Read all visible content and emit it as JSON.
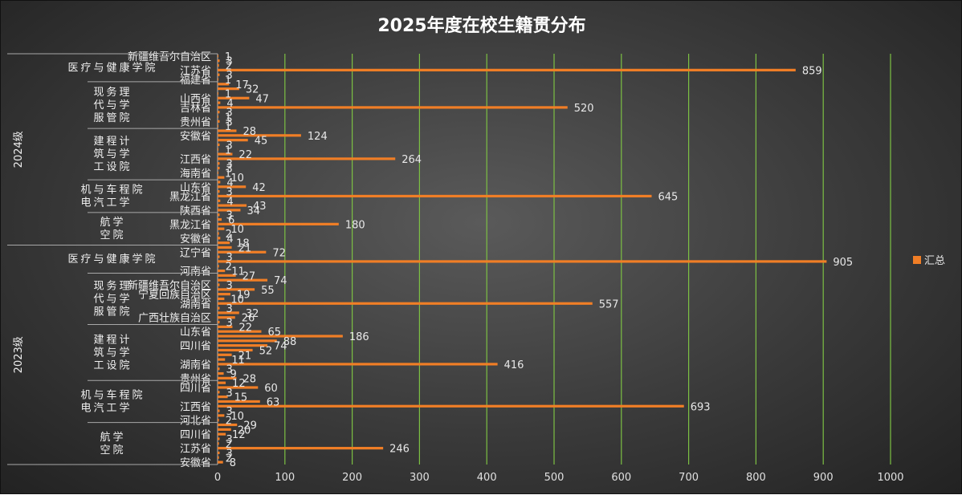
{
  "chart_data": {
    "type": "bar",
    "orientation": "horizontal",
    "title": "2025年度在校生籍贯分布",
    "xlabel": "",
    "ylabel": "",
    "xlim": [
      0,
      1000
    ],
    "x_ticks": [
      0,
      100,
      200,
      300,
      400,
      500,
      600,
      700,
      800,
      900,
      1000
    ],
    "grid": true,
    "legend": {
      "position": "right",
      "entries": [
        "汇总"
      ]
    },
    "series_color": "#f07e26",
    "grid_color": "#7cc043",
    "groups": [
      {
        "label": "2024级",
        "departments": [
          {
            "label": "医疗与健康学院",
            "bars": [
              {
                "label": "新疆维吾尔自治区",
                "value": 1
              },
              {
                "label": "",
                "value": 3
              },
              {
                "label": "",
                "value": 2
              },
              {
                "label": "江苏省",
                "value": 859
              },
              {
                "label": "",
                "value": 3
              },
              {
                "label": "福建省",
                "value": 1
              }
            ]
          },
          {
            "label": "现代服务与管理学院",
            "bars": [
              {
                "label": "",
                "value": 17
              },
              {
                "label": "",
                "value": 32
              },
              {
                "label": "",
                "value": 1
              },
              {
                "label": "山西省",
                "value": 47
              },
              {
                "label": "",
                "value": 4
              },
              {
                "label": "吉林省",
                "value": 520
              },
              {
                "label": "",
                "value": 3
              },
              {
                "label": "",
                "value": 1
              },
              {
                "label": "贵州省",
                "value": 3
              },
              {
                "label": "",
                "value": 1
              }
            ]
          },
          {
            "label": "建筑工程与设计学院",
            "bars": [
              {
                "label": "",
                "value": 28
              },
              {
                "label": "安徽省",
                "value": 124
              },
              {
                "label": "",
                "value": 45
              },
              {
                "label": "",
                "value": 3
              },
              {
                "label": "",
                "value": 1
              },
              {
                "label": "",
                "value": 22
              },
              {
                "label": "江西省",
                "value": 264
              },
              {
                "label": "",
                "value": 3
              },
              {
                "label": "",
                "value": 3
              },
              {
                "label": "海南省",
                "value": 1
              },
              {
                "label": "",
                "value": 10
              }
            ]
          },
          {
            "label": "机电与汽车工程学院",
            "bars": [
              {
                "label": "",
                "value": 4
              },
              {
                "label": "山东省",
                "value": 42
              },
              {
                "label": "",
                "value": 3
              },
              {
                "label": "黑龙江省",
                "value": 645
              },
              {
                "label": "",
                "value": 4
              },
              {
                "label": "",
                "value": 43
              },
              {
                "label": "陕西省",
                "value": 34
              }
            ]
          },
          {
            "label": "航空学院",
            "bars": [
              {
                "label": "",
                "value": 3
              },
              {
                "label": "",
                "value": 6
              },
              {
                "label": "黑龙江省",
                "value": 180
              },
              {
                "label": "",
                "value": 10
              },
              {
                "label": "",
                "value": 2
              },
              {
                "label": "安徽省",
                "value": 4
              },
              {
                "label": "",
                "value": 18
              }
            ]
          }
        ]
      },
      {
        "label": "2023级",
        "departments": [
          {
            "label": "医疗与健康学院",
            "bars": [
              {
                "label": "",
                "value": 21
              },
              {
                "label": "辽宁省",
                "value": 72
              },
              {
                "label": "",
                "value": 3
              },
              {
                "label": "",
                "value": 905
              },
              {
                "label": "",
                "value": 2
              },
              {
                "label": "河南省",
                "value": 11
              }
            ]
          },
          {
            "label": "现代服务与管理学院",
            "bars": [
              {
                "label": "",
                "value": 27
              },
              {
                "label": "",
                "value": 74
              },
              {
                "label": "新疆维吾尔自治区",
                "value": 3
              },
              {
                "label": "",
                "value": 55
              },
              {
                "label": "宁夏回族自治区",
                "value": 19
              },
              {
                "label": "",
                "value": 10
              },
              {
                "label": "湖南省",
                "value": 557
              },
              {
                "label": "",
                "value": 3
              },
              {
                "label": "",
                "value": 32
              },
              {
                "label": "广西壮族自治区",
                "value": 26
              },
              {
                "label": "",
                "value": 3
              }
            ]
          },
          {
            "label": "建筑工程与设计学院",
            "bars": [
              {
                "label": "",
                "value": 22
              },
              {
                "label": "山东省",
                "value": 65
              },
              {
                "label": "",
                "value": 186
              },
              {
                "label": "",
                "value": 88
              },
              {
                "label": "四川省",
                "value": 74
              },
              {
                "label": "",
                "value": 52
              },
              {
                "label": "",
                "value": 21
              },
              {
                "label": "",
                "value": 11
              },
              {
                "label": "湖南省",
                "value": 416
              },
              {
                "label": "",
                "value": 3
              },
              {
                "label": "",
                "value": 9
              },
              {
                "label": "贵州省",
                "value": 28
              }
            ]
          },
          {
            "label": "机电与汽车工程学院",
            "bars": [
              {
                "label": "",
                "value": 12
              },
              {
                "label": "四川省",
                "value": 60
              },
              {
                "label": "",
                "value": 3
              },
              {
                "label": "",
                "value": 15
              },
              {
                "label": "",
                "value": 63
              },
              {
                "label": "江西省",
                "value": 693
              },
              {
                "label": "",
                "value": 3
              },
              {
                "label": "",
                "value": 10
              },
              {
                "label": "河北省",
                "value": 2
              }
            ]
          },
          {
            "label": "航空学院",
            "bars": [
              {
                "label": "",
                "value": 29
              },
              {
                "label": "",
                "value": 20
              },
              {
                "label": "四川省",
                "value": 12
              },
              {
                "label": "",
                "value": 3
              },
              {
                "label": "",
                "value": 2
              },
              {
                "label": "江苏省",
                "value": 246
              },
              {
                "label": "",
                "value": 3
              },
              {
                "label": "",
                "value": 2
              },
              {
                "label": "安徽省",
                "value": 8
              }
            ]
          }
        ]
      }
    ]
  }
}
